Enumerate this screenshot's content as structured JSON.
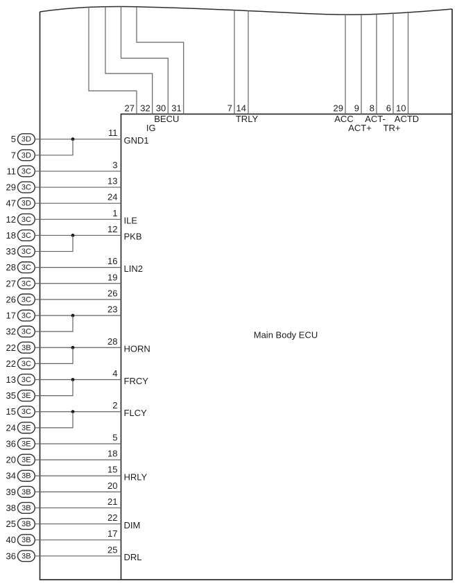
{
  "title": "Main Body ECU",
  "colors": {
    "background": "#ffffff",
    "border_line": "#2e2e2e",
    "wire_line": "#636363",
    "text": "#1c1c1c"
  },
  "top_connector": {
    "pins": [
      {
        "number": "27"
      },
      {
        "number": "32",
        "label": "IG",
        "label_row": 2
      },
      {
        "number": "30",
        "label": "BECU",
        "label_row": 1
      },
      {
        "number": "31"
      },
      {
        "number": "7"
      },
      {
        "number": "14",
        "label": "TRLY",
        "label_row": 1
      },
      {
        "number": "29",
        "label": "ACC",
        "label_row": 1
      },
      {
        "number": "9",
        "label": "ACT+",
        "label_row": 2
      },
      {
        "number": "8",
        "label": "ACT-",
        "label_row": 1
      },
      {
        "number": "6",
        "label": "TR+",
        "label_row": 2
      },
      {
        "number": "10",
        "label": "ACTD",
        "label_row": 1
      }
    ]
  },
  "left_connector": {
    "rows": [
      {
        "terminal": "5",
        "connector": "3D",
        "pin": "11",
        "signal": "GND1",
        "joins_with_next": true
      },
      {
        "terminal": "7",
        "connector": "3D",
        "joined_to_previous": true
      },
      {
        "terminal": "11",
        "connector": "3C",
        "pin": "3"
      },
      {
        "terminal": "29",
        "connector": "3C",
        "pin": "13"
      },
      {
        "terminal": "47",
        "connector": "3D",
        "pin": "24"
      },
      {
        "terminal": "12",
        "connector": "3C",
        "pin": "1",
        "signal": "ILE"
      },
      {
        "terminal": "18",
        "connector": "3C",
        "pin": "12",
        "signal": "PKB",
        "joins_with_next": true
      },
      {
        "terminal": "33",
        "connector": "3C",
        "joined_to_previous": true
      },
      {
        "terminal": "28",
        "connector": "3C",
        "pin": "16",
        "signal": "LIN2"
      },
      {
        "terminal": "27",
        "connector": "3C",
        "pin": "19"
      },
      {
        "terminal": "26",
        "connector": "3C",
        "pin": "26"
      },
      {
        "terminal": "17",
        "connector": "3C",
        "pin": "23",
        "joins_with_next": true
      },
      {
        "terminal": "32",
        "connector": "3C",
        "joined_to_previous": true
      },
      {
        "terminal": "22",
        "connector": "3B",
        "pin": "28",
        "signal": "HORN",
        "joins_with_next": true
      },
      {
        "terminal": "22",
        "connector": "3C",
        "joined_to_previous": true
      },
      {
        "terminal": "13",
        "connector": "3C",
        "pin": "4",
        "signal": "FRCY",
        "joins_with_next": true
      },
      {
        "terminal": "35",
        "connector": "3E",
        "joined_to_previous": true
      },
      {
        "terminal": "15",
        "connector": "3C",
        "pin": "2",
        "signal": "FLCY",
        "joins_with_next": true
      },
      {
        "terminal": "24",
        "connector": "3E",
        "joined_to_previous": true
      },
      {
        "terminal": "36",
        "connector": "3E",
        "pin": "5"
      },
      {
        "terminal": "20",
        "connector": "3E",
        "pin": "18"
      },
      {
        "terminal": "34",
        "connector": "3B",
        "pin": "15",
        "signal": "HRLY"
      },
      {
        "terminal": "39",
        "connector": "3B",
        "pin": "20"
      },
      {
        "terminal": "38",
        "connector": "3B",
        "pin": "21"
      },
      {
        "terminal": "25",
        "connector": "3B",
        "pin": "22",
        "signal": "DIM"
      },
      {
        "terminal": "40",
        "connector": "3B",
        "pin": "17"
      },
      {
        "terminal": "36",
        "connector": "3B",
        "pin": "25",
        "signal": "DRL"
      }
    ]
  }
}
